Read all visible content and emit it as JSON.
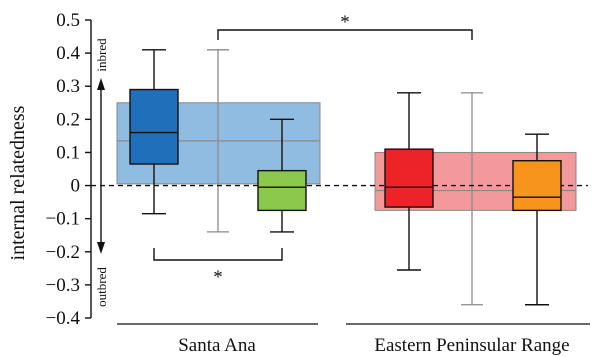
{
  "chart_data": {
    "type": "boxplot",
    "ylabel": "internal relatedness",
    "ylim": [
      -0.4,
      0.5
    ],
    "yticks": [
      {
        "value": 0.5,
        "label": "0.5"
      },
      {
        "value": 0.4,
        "label": "0.4"
      },
      {
        "value": 0.3,
        "label": "0.3"
      },
      {
        "value": 0.2,
        "label": "0.2"
      },
      {
        "value": 0.1,
        "label": "0.1"
      },
      {
        "value": 0,
        "label": "0"
      },
      {
        "value": -0.1,
        "label": "−0.1"
      },
      {
        "value": -0.2,
        "label": "−0.2"
      },
      {
        "value": -0.3,
        "label": "−0.3"
      },
      {
        "value": -0.4,
        "label": "−0.4"
      }
    ],
    "reference_line": 0,
    "direction_labels": {
      "up": "inbred",
      "down": "outbred"
    },
    "groups": [
      {
        "label": "Santa Ana",
        "summary": {
          "q1": 0.005,
          "median": 0.135,
          "q3": 0.25,
          "whisker_low": -0.14,
          "whisker_high": 0.41,
          "color": "#8fbce0"
        },
        "boxes": [
          {
            "q1": 0.065,
            "median": 0.16,
            "q3": 0.29,
            "whisker_low": -0.085,
            "whisker_high": 0.41,
            "color": "#1f6fbb"
          },
          {
            "q1": -0.075,
            "median": -0.005,
            "q3": 0.045,
            "whisker_low": -0.14,
            "whisker_high": 0.2,
            "color": "#8cc84b"
          }
        ]
      },
      {
        "label": "Eastern Peninsular Range",
        "summary": {
          "q1": -0.075,
          "median": -0.015,
          "q3": 0.1,
          "whisker_low": -0.36,
          "whisker_high": 0.28,
          "color": "#f4999b"
        },
        "boxes": [
          {
            "q1": -0.065,
            "median": -0.005,
            "q3": 0.11,
            "whisker_low": -0.255,
            "whisker_high": 0.28,
            "color": "#ec2327"
          },
          {
            "q1": -0.075,
            "median": -0.035,
            "q3": 0.075,
            "whisker_low": -0.36,
            "whisker_high": 0.155,
            "color": "#f7941d"
          }
        ]
      }
    ],
    "significance": [
      {
        "label": "*",
        "between": "Santa Ana vs Eastern Peninsular Range"
      },
      {
        "label": "*",
        "between": "Santa Ana boxes"
      }
    ]
  }
}
